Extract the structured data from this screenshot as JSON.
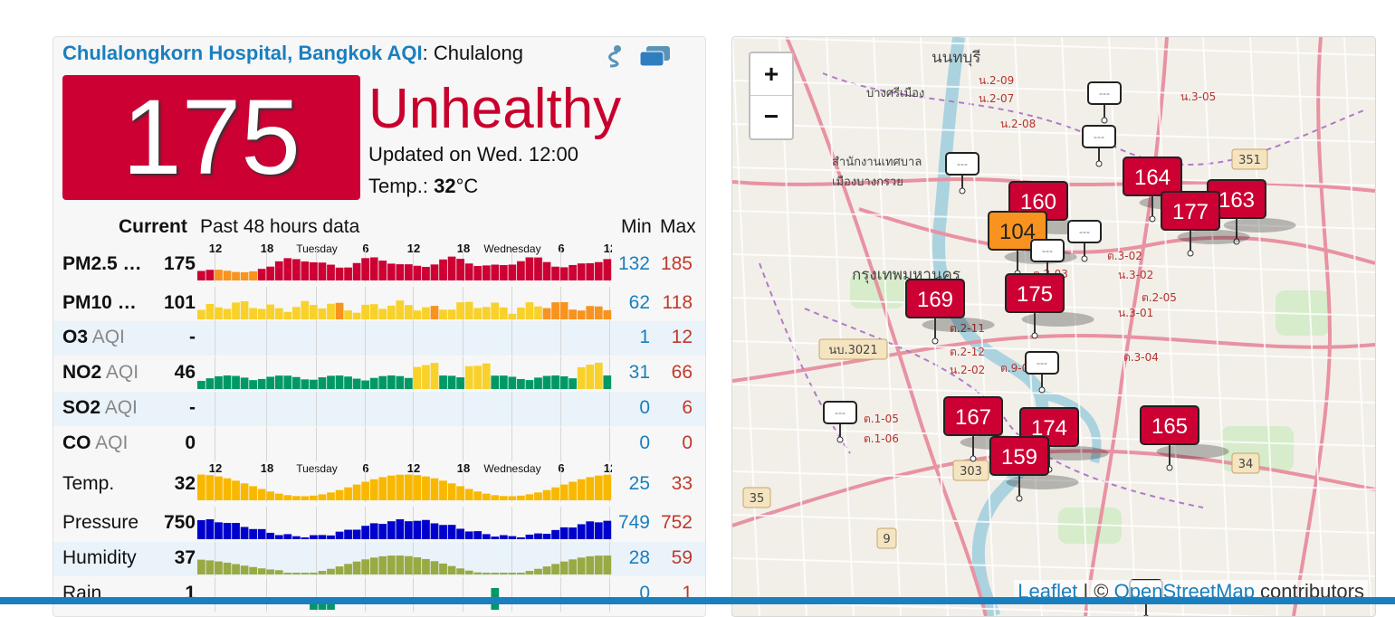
{
  "station": {
    "title_link": "Chulalongkorn Hospital, Bangkok AQI",
    "title_rest": ": Chulalong",
    "aqi": "175",
    "level": "Unhealthy",
    "aqi_color": "#cc0033",
    "updated": "Updated on Wed. 12:00",
    "temp_label": "Temp.: ",
    "temp_value": "32",
    "temp_unit": "°C",
    "icons": [
      "share-icon",
      "cards-icon"
    ]
  },
  "table": {
    "header_current": "Current",
    "header_past": "Past 48 hours data",
    "header_min": "Min",
    "header_max": "Max",
    "time_axis_ticks": [
      "12",
      "18",
      "Tuesday",
      "6",
      "12",
      "18",
      "Wednesday",
      "6",
      "12"
    ],
    "rows": [
      {
        "label_bold": "PM2.5 …",
        "label_gray": "",
        "current": "175",
        "min": "132",
        "max": "185"
      },
      {
        "label_bold": "PM10 …",
        "label_gray": "",
        "current": "101",
        "min": "62",
        "max": "118"
      },
      {
        "label_bold": "O3",
        "label_gray": " AQI",
        "current": "-",
        "min": "1",
        "max": "12"
      },
      {
        "label_bold": "NO2",
        "label_gray": " AQI",
        "current": "46",
        "min": "31",
        "max": "66"
      },
      {
        "label_bold": "SO2",
        "label_gray": " AQI",
        "current": "-",
        "min": "0",
        "max": "6"
      },
      {
        "label_bold": "CO",
        "label_gray": " AQI",
        "current": "0",
        "min": "0",
        "max": "0"
      },
      {
        "label": "Temp.",
        "current": "32",
        "min": "25",
        "max": "33"
      },
      {
        "label": "Pressure",
        "current": "750",
        "min": "749",
        "max": "752"
      },
      {
        "label": "Humidity",
        "current": "37",
        "min": "28",
        "max": "59"
      },
      {
        "label": "Rain",
        "current": "1",
        "min": "0",
        "max": "1"
      }
    ]
  },
  "map": {
    "zoom_in": "+",
    "zoom_out": "−",
    "attribution_leaflet": "Leaflet",
    "attribution_sep": " | © ",
    "attribution_osm": "OpenStreetMap",
    "attribution_rest": " contributors",
    "place_labels": [
      "นนทบุรี",
      "บางศรีเมือง",
      "สำนักงานเทศบาล",
      "เมืองบางกรวย",
      "กรุงเทพมหานคร"
    ],
    "road_labels": [
      "น.2-09",
      "น.2-07",
      "น.2-08",
      "น.3-05",
      "ต.3-02",
      "น.3-02",
      "ต.2-05",
      "น.3-01",
      "ต.3-04",
      "ต.2-03",
      "ต.2-11",
      "ต.2-12",
      "น.2-02",
      "ต.1-05",
      "ต.1-06",
      "ต.9-02"
    ],
    "route_shields": [
      "351",
      "นบ.3021",
      "303",
      "34",
      "35",
      "9"
    ],
    "markers": [
      {
        "value": "---",
        "color": "#ffffff"
      },
      {
        "value": "---",
        "color": "#ffffff"
      },
      {
        "value": "---",
        "color": "#ffffff"
      },
      {
        "value": "160",
        "color": "#cc0033"
      },
      {
        "value": "164",
        "color": "#cc0033"
      },
      {
        "value": "163",
        "color": "#cc0033"
      },
      {
        "value": "177",
        "color": "#cc0033"
      },
      {
        "value": "104",
        "color": "#f7931e"
      },
      {
        "value": "---",
        "color": "#ffffff"
      },
      {
        "value": "---",
        "color": "#ffffff"
      },
      {
        "value": "169",
        "color": "#cc0033"
      },
      {
        "value": "175",
        "color": "#cc0033"
      },
      {
        "value": "---",
        "color": "#ffffff"
      },
      {
        "value": "---",
        "color": "#ffffff"
      },
      {
        "value": "167",
        "color": "#cc0033"
      },
      {
        "value": "174",
        "color": "#cc0033"
      },
      {
        "value": "159",
        "color": "#cc0033"
      },
      {
        "value": "165",
        "color": "#cc0033"
      },
      {
        "value": "---",
        "color": "#ffffff"
      }
    ]
  }
}
